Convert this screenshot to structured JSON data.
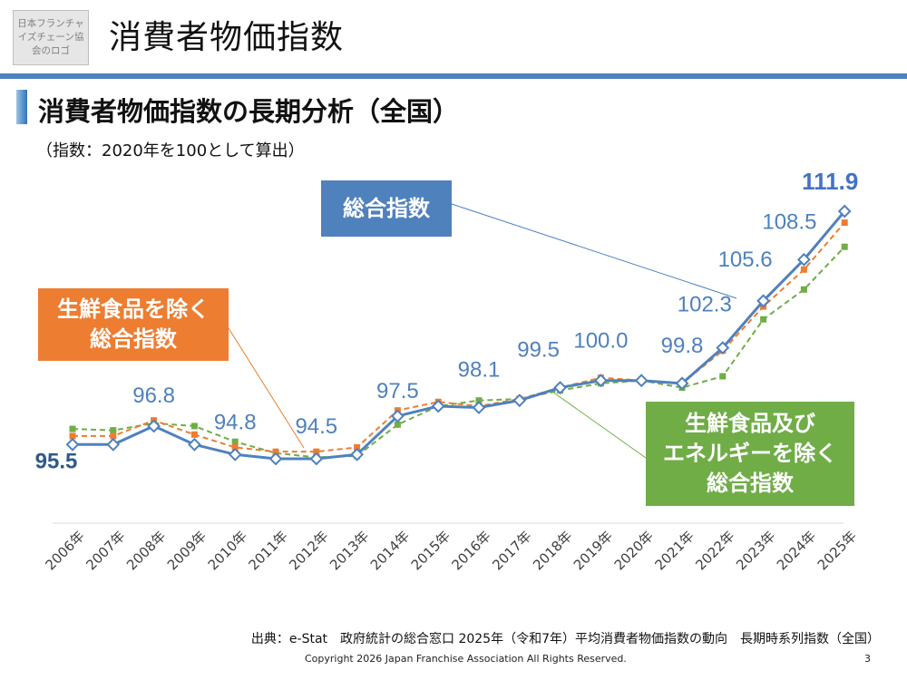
{
  "logo": {
    "lines": [
      "日本フランチャ",
      "イズチェーン協",
      "会のロゴ"
    ]
  },
  "header": {
    "title": "消費者物価指数"
  },
  "section": {
    "title": "消費者物価指数の長期分析（全国）",
    "subtitle": "（指数：2020年を100として算出）"
  },
  "callouts": {
    "total": "総合指数",
    "fresh_excluded": [
      "生鮮食品を除く",
      "総合指数"
    ],
    "fresh_energy_excluded": [
      "生鮮食品及び",
      "エネルギーを除く",
      "総合指数"
    ]
  },
  "footer": {
    "source": "出典：e-Stat　政府統計の総合窓口 2025年（令和7年）平均消費者物価指数の動向　長期時系列指数（全国）",
    "copyright": "Copyright 2026 Japan Franchise Association All Rights Reserved.",
    "page_number": "3"
  },
  "colors": {
    "total": "#4f81bd",
    "fresh_excluded": "#ed7d31",
    "fresh_energy_excluded": "#70ad47",
    "accent_rule": "#4f81bd"
  },
  "chart_data": {
    "type": "line",
    "categories": [
      "2006年",
      "2007年",
      "2008年",
      "2009年",
      "2010年",
      "2011年",
      "2012年",
      "2013年",
      "2014年",
      "2015年",
      "2016年",
      "2017年",
      "2018年",
      "2019年",
      "2020年",
      "2021年",
      "2022年",
      "2023年",
      "2024年",
      "2025年"
    ],
    "series": [
      {
        "name": "総合指数",
        "values": [
          95.5,
          95.5,
          96.8,
          95.5,
          94.8,
          94.5,
          94.5,
          94.8,
          97.5,
          98.2,
          98.1,
          98.6,
          99.5,
          100.0,
          100.0,
          99.8,
          102.3,
          105.6,
          108.5,
          111.9
        ],
        "labels": {
          "0": "95.5",
          "2": "96.8",
          "4": "94.8",
          "6": "94.5",
          "8": "97.5",
          "10": "98.1",
          "12": "99.5",
          "13": "100.0",
          "15": "99.8",
          "16": "102.3",
          "17": "105.6",
          "18": "108.5",
          "19": "111.9"
        },
        "style": "solid",
        "marker": "diamond"
      },
      {
        "name": "生鮮食品を除く総合指数",
        "values": [
          96.1,
          96.1,
          97.2,
          96.2,
          95.3,
          95.0,
          95.0,
          95.3,
          97.9,
          98.5,
          98.2,
          98.7,
          99.5,
          100.2,
          100.0,
          99.8,
          102.1,
          105.2,
          107.8,
          111.1
        ],
        "style": "dashed",
        "marker": "square"
      },
      {
        "name": "生鮮食品及びエネルギーを除く総合指数",
        "values": [
          96.6,
          96.5,
          97.0,
          96.8,
          95.7,
          94.9,
          94.6,
          94.7,
          96.9,
          98.2,
          98.6,
          98.7,
          99.3,
          99.8,
          100.0,
          99.5,
          100.3,
          104.3,
          106.4,
          109.4
        ],
        "style": "dashed",
        "marker": "square"
      }
    ],
    "ylim": [
      92,
      113
    ],
    "grid": false
  }
}
